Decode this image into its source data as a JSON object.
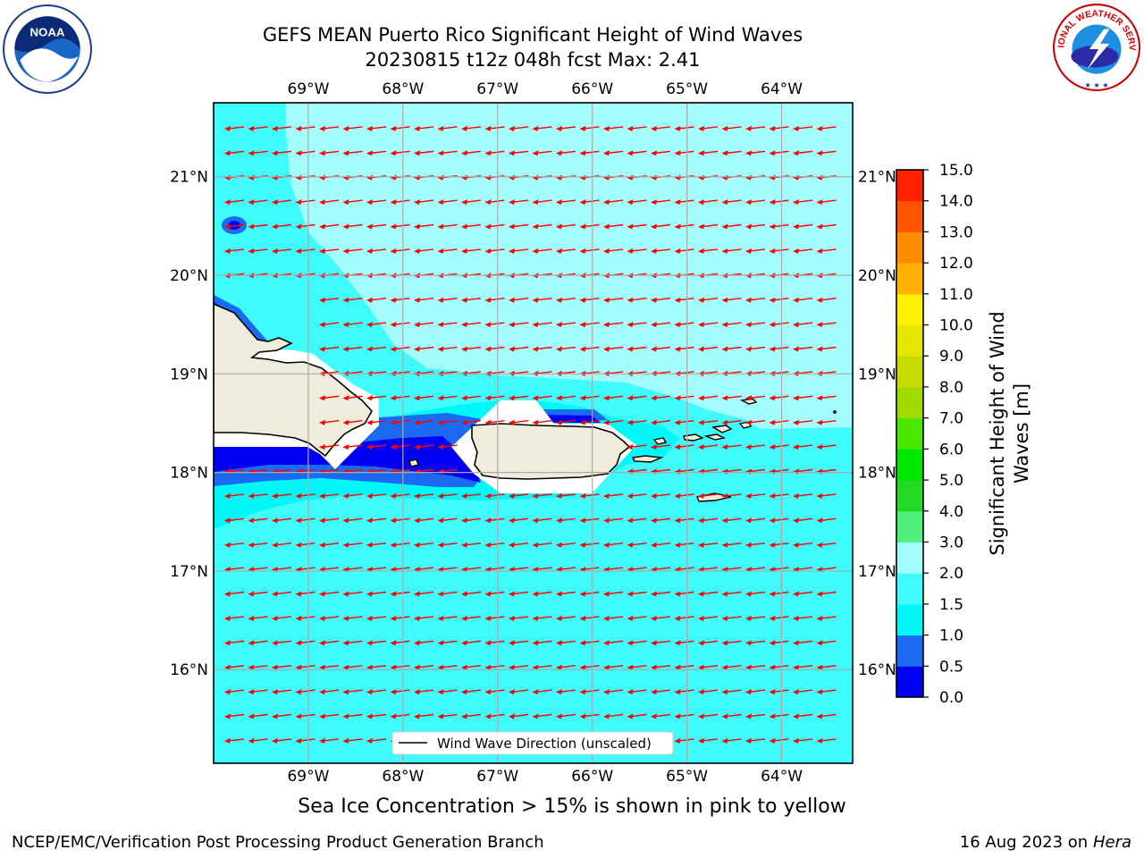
{
  "header": {
    "title_line1": "GEFS MEAN Puerto Rico Significant Height of Wind Waves",
    "title_line2": "20230815 t12z 048h fcst   Max: 2.41"
  },
  "logos": {
    "left": "NOAA",
    "right": "NATIONAL WEATHER SERVICE"
  },
  "chart_data": {
    "type": "heatmap",
    "title": "GEFS MEAN Puerto Rico Significant Height of Wind Waves",
    "subtitle": "20230815 t12z 048h fcst   Max: 2.41",
    "max_value": 2.41,
    "x_ticks": [
      "69°W",
      "68°W",
      "67°W",
      "66°W",
      "65°W",
      "64°W"
    ],
    "x_tick_values": [
      -69,
      -68,
      -67,
      -66,
      -65,
      -64
    ],
    "y_ticks": [
      "21°N",
      "20°N",
      "19°N",
      "18°N",
      "17°N",
      "16°N"
    ],
    "y_tick_values": [
      21,
      20,
      19,
      18,
      17,
      16
    ],
    "xlim": [
      -70.0,
      -63.25
    ],
    "ylim": [
      15.05,
      21.75
    ],
    "grid": true,
    "colorbar": {
      "label": "Significant Height of Wind Waves [m]",
      "label_lines": [
        "Significant Height of Wind",
        "Waves [m]"
      ],
      "levels": [
        0.0,
        0.5,
        1.0,
        1.5,
        2.0,
        3.0,
        4.0,
        5.0,
        6.0,
        7.0,
        8.0,
        9.0,
        10.0,
        11.0,
        12.0,
        13.0,
        14.0,
        15.0
      ],
      "tick_labels": [
        "0.0",
        "0.5",
        "1.0",
        "1.5",
        "2.0",
        "3.0",
        "4.0",
        "5.0",
        "6.0",
        "7.0",
        "8.0",
        "9.0",
        "10.0",
        "11.0",
        "12.0",
        "13.0",
        "14.0",
        "15.0"
      ],
      "colors": [
        "#0000f5",
        "#1a6bf2",
        "#00f8f8",
        "#3ffbfb",
        "#a3fdfd",
        "#4df07a",
        "#23d923",
        "#00e600",
        "#4ae600",
        "#a2d900",
        "#c8d900",
        "#e6e600",
        "#fff000",
        "#ffb000",
        "#ff8c00",
        "#ff5500",
        "#ff2000"
      ]
    },
    "arrow_direction": "from east (pointing west-southwest)",
    "legend": {
      "label": "Wind Wave Direction (unscaled)",
      "position": "bottom-center"
    },
    "land_color": "#efecdb",
    "arrow_color": "#ff0000"
  },
  "captions": {
    "ice": "Sea Ice Concentration > 15% is shown in pink to yellow",
    "credit": "NCEP/EMC/Verification Post Processing Product Generation Branch",
    "date": "16 Aug 2023 on",
    "machine": "Hera"
  }
}
